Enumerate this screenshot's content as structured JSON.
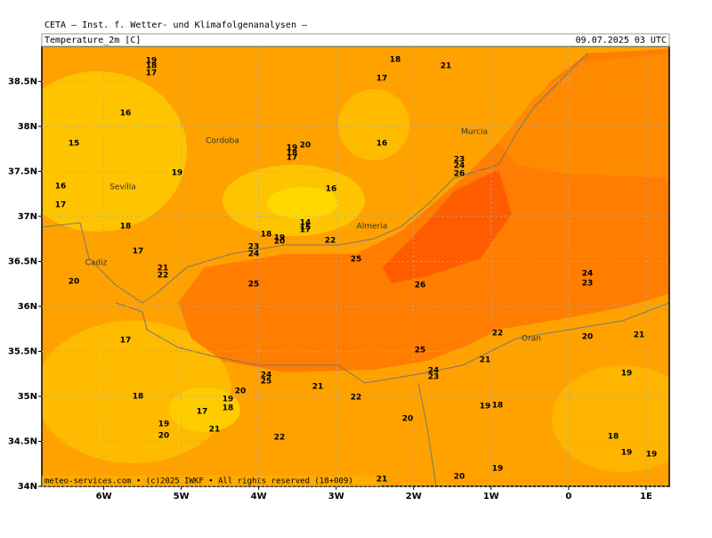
{
  "chart_data": {
    "type": "map",
    "header": "CETA – Inst. f. Wetter- und Klimafolgenanalysen –",
    "title": "Temperature_2m [C]",
    "date": "09.07.2025 03 UTC",
    "footer": "meteo-services.com • (c)2025 IWKF • All rights reserved (18+009)",
    "xlim": [
      -6.8,
      1.3
    ],
    "ylim": [
      34,
      38.89
    ],
    "xticks": [
      {
        "value": -6,
        "label": "6W"
      },
      {
        "value": -5,
        "label": "5W"
      },
      {
        "value": -4,
        "label": "4W"
      },
      {
        "value": -3,
        "label": "3W"
      },
      {
        "value": -2,
        "label": "2W"
      },
      {
        "value": -1,
        "label": "1W"
      },
      0,
      {
        "value": 1,
        "label": "1E"
      }
    ],
    "yticks": [
      {
        "value": 34,
        "label": "34N"
      },
      {
        "value": 34.5,
        "label": "34.5N"
      },
      {
        "value": 35,
        "label": "35N"
      },
      {
        "value": 35.5,
        "label": "35.5N"
      },
      {
        "value": 36,
        "label": "36N"
      },
      {
        "value": 36.5,
        "label": "36.5N"
      },
      {
        "value": 37,
        "label": "37N"
      },
      {
        "value": 37.5,
        "label": "37.5N"
      },
      {
        "value": 38,
        "label": "38N"
      },
      {
        "value": 38.5,
        "label": "38.5N"
      }
    ],
    "grid": true,
    "places": [
      "Cordoba",
      "Sevilla",
      "Cadiz",
      "Almeria",
      "Murcia",
      "Oran"
    ],
    "contour_labels": [
      19,
      18,
      17,
      16,
      15,
      19,
      16,
      17,
      18,
      17,
      21,
      22,
      20,
      17,
      18,
      19,
      20,
      21,
      17,
      19,
      18,
      20,
      24,
      25,
      21,
      22,
      22,
      20,
      21,
      20,
      19,
      19,
      18,
      21,
      22,
      20,
      21,
      19,
      18,
      19,
      19,
      24,
      23,
      25,
      24,
      23,
      26,
      25,
      25,
      22,
      23,
      24,
      18,
      19,
      20,
      14,
      15,
      17,
      16,
      19,
      18,
      17,
      20,
      16,
      17,
      18,
      21,
      23,
      24,
      26
    ]
  }
}
